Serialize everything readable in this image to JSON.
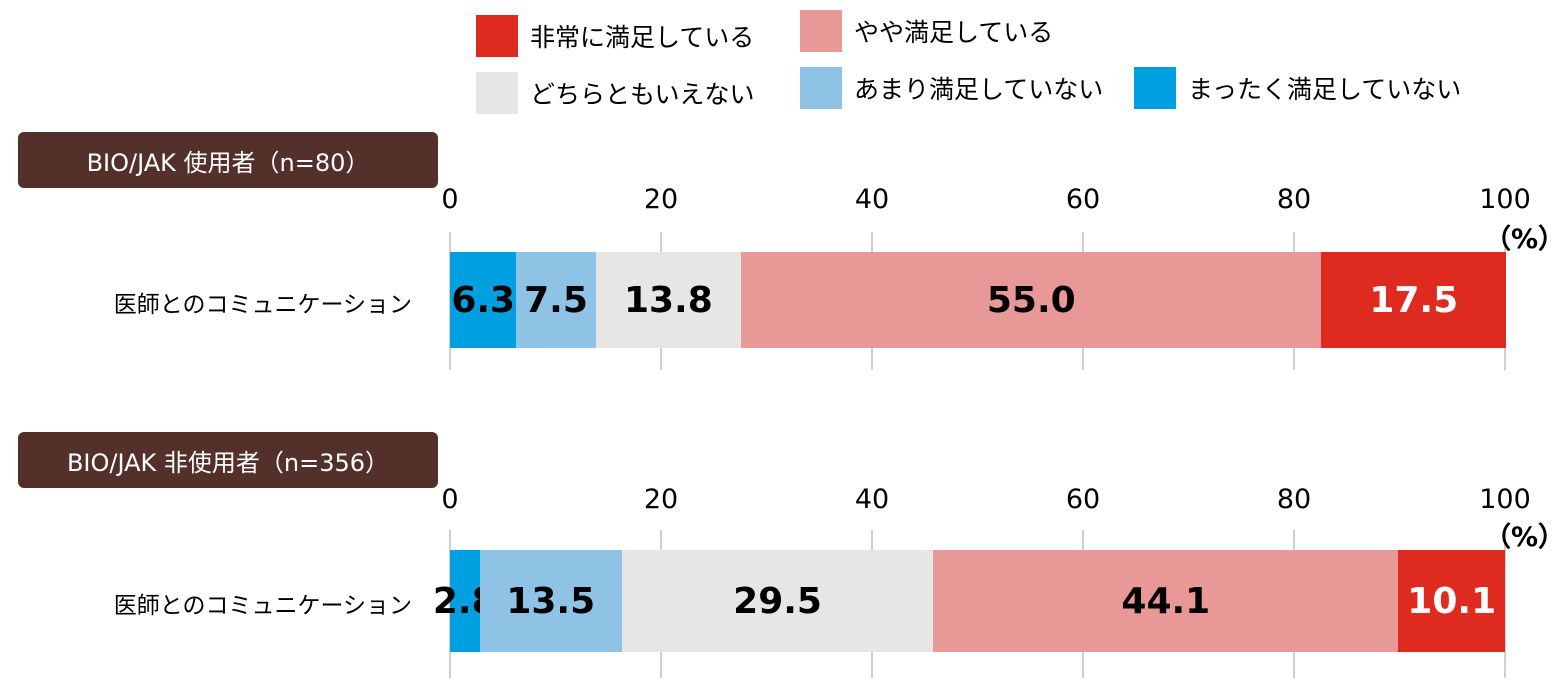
{
  "legend": [
    {
      "key": "very",
      "label": "非常に満足している",
      "color": "#df2a1f"
    },
    {
      "key": "somewhat",
      "label": "やや満足している",
      "color": "#e99898"
    },
    {
      "key": "neutral",
      "label": "どちらともいえない",
      "color": "#e8e6e5"
    },
    {
      "key": "not_much",
      "label": "あまり満足していない",
      "color": "#8fc3e6"
    },
    {
      "key": "not_at_all",
      "label": "まったく満足していない",
      "color": "#00a0e0"
    }
  ],
  "chart_data": {
    "type": "bar",
    "orientation": "horizontal",
    "stacked": true,
    "xlim": [
      0,
      100
    ],
    "ticks": [
      "0",
      "20",
      "40",
      "60",
      "80",
      "100"
    ],
    "unit": "（%）",
    "segment_order": [
      "not_at_all",
      "not_much",
      "neutral",
      "somewhat",
      "very"
    ],
    "groups": [
      {
        "title": "BIO/JAK 使用者（n=80）",
        "category": "医師とのコミュニケーション",
        "values": {
          "not_at_all": 6.3,
          "not_much": 7.5,
          "neutral": 13.8,
          "somewhat": 55.0,
          "very": 17.5
        },
        "labels": {
          "not_at_all": "6.3",
          "not_much": "7.5",
          "neutral": "13.8",
          "somewhat": "55.0",
          "very": "17.5"
        }
      },
      {
        "title": "BIO/JAK 非使用者（n=356）",
        "category": "医師とのコミュニケーション",
        "values": {
          "not_at_all": 2.8,
          "not_much": 13.5,
          "neutral": 29.5,
          "somewhat": 44.1,
          "very": 10.1
        },
        "labels": {
          "not_at_all": "2.8",
          "not_much": "13.5",
          "neutral": "29.5",
          "somewhat": "44.1",
          "very": "10.1"
        }
      }
    ]
  }
}
